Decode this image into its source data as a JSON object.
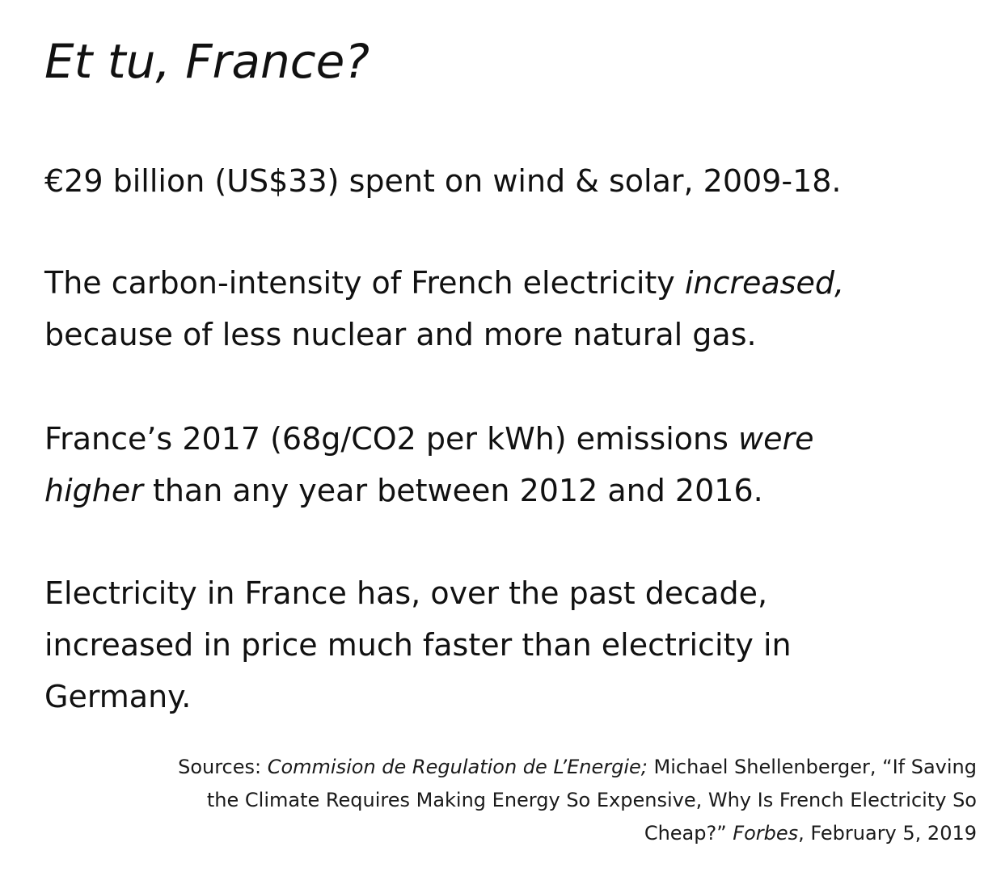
{
  "title": "Et tu, France?",
  "paragraphs": {
    "p1": {
      "line1": "€29 billion (US$33) spent on wind & solar, 2009-18."
    },
    "p2": {
      "line1_before": "The carbon-intensity of French electricity ",
      "line1_em": "increased,",
      "line2": "because of less nuclear and more natural gas."
    },
    "p3": {
      "line1_before": "France’s 2017 (68g/CO2 per kWh) emissions ",
      "line1_em": "were",
      "line2_em": "higher",
      "line2_after": " than any year between 2012 and 2016."
    },
    "p4": {
      "line1": "Electricity in France has, over the past decade,",
      "line2": "increased in price much faster than electricity in",
      "line3": "Germany."
    }
  },
  "sources": {
    "label": "Sources: ",
    "ref1_em": "Commision de Regulation de L’Energie;",
    "line1_after": " Michael  Shellenberger, “If Saving",
    "line2": "the Climate Requires Making Energy So Expensive, Why Is French Electricity So",
    "line3_before": "Cheap?” ",
    "line3_em": "Forbes",
    "line3_after": ", February 5, 2019"
  }
}
